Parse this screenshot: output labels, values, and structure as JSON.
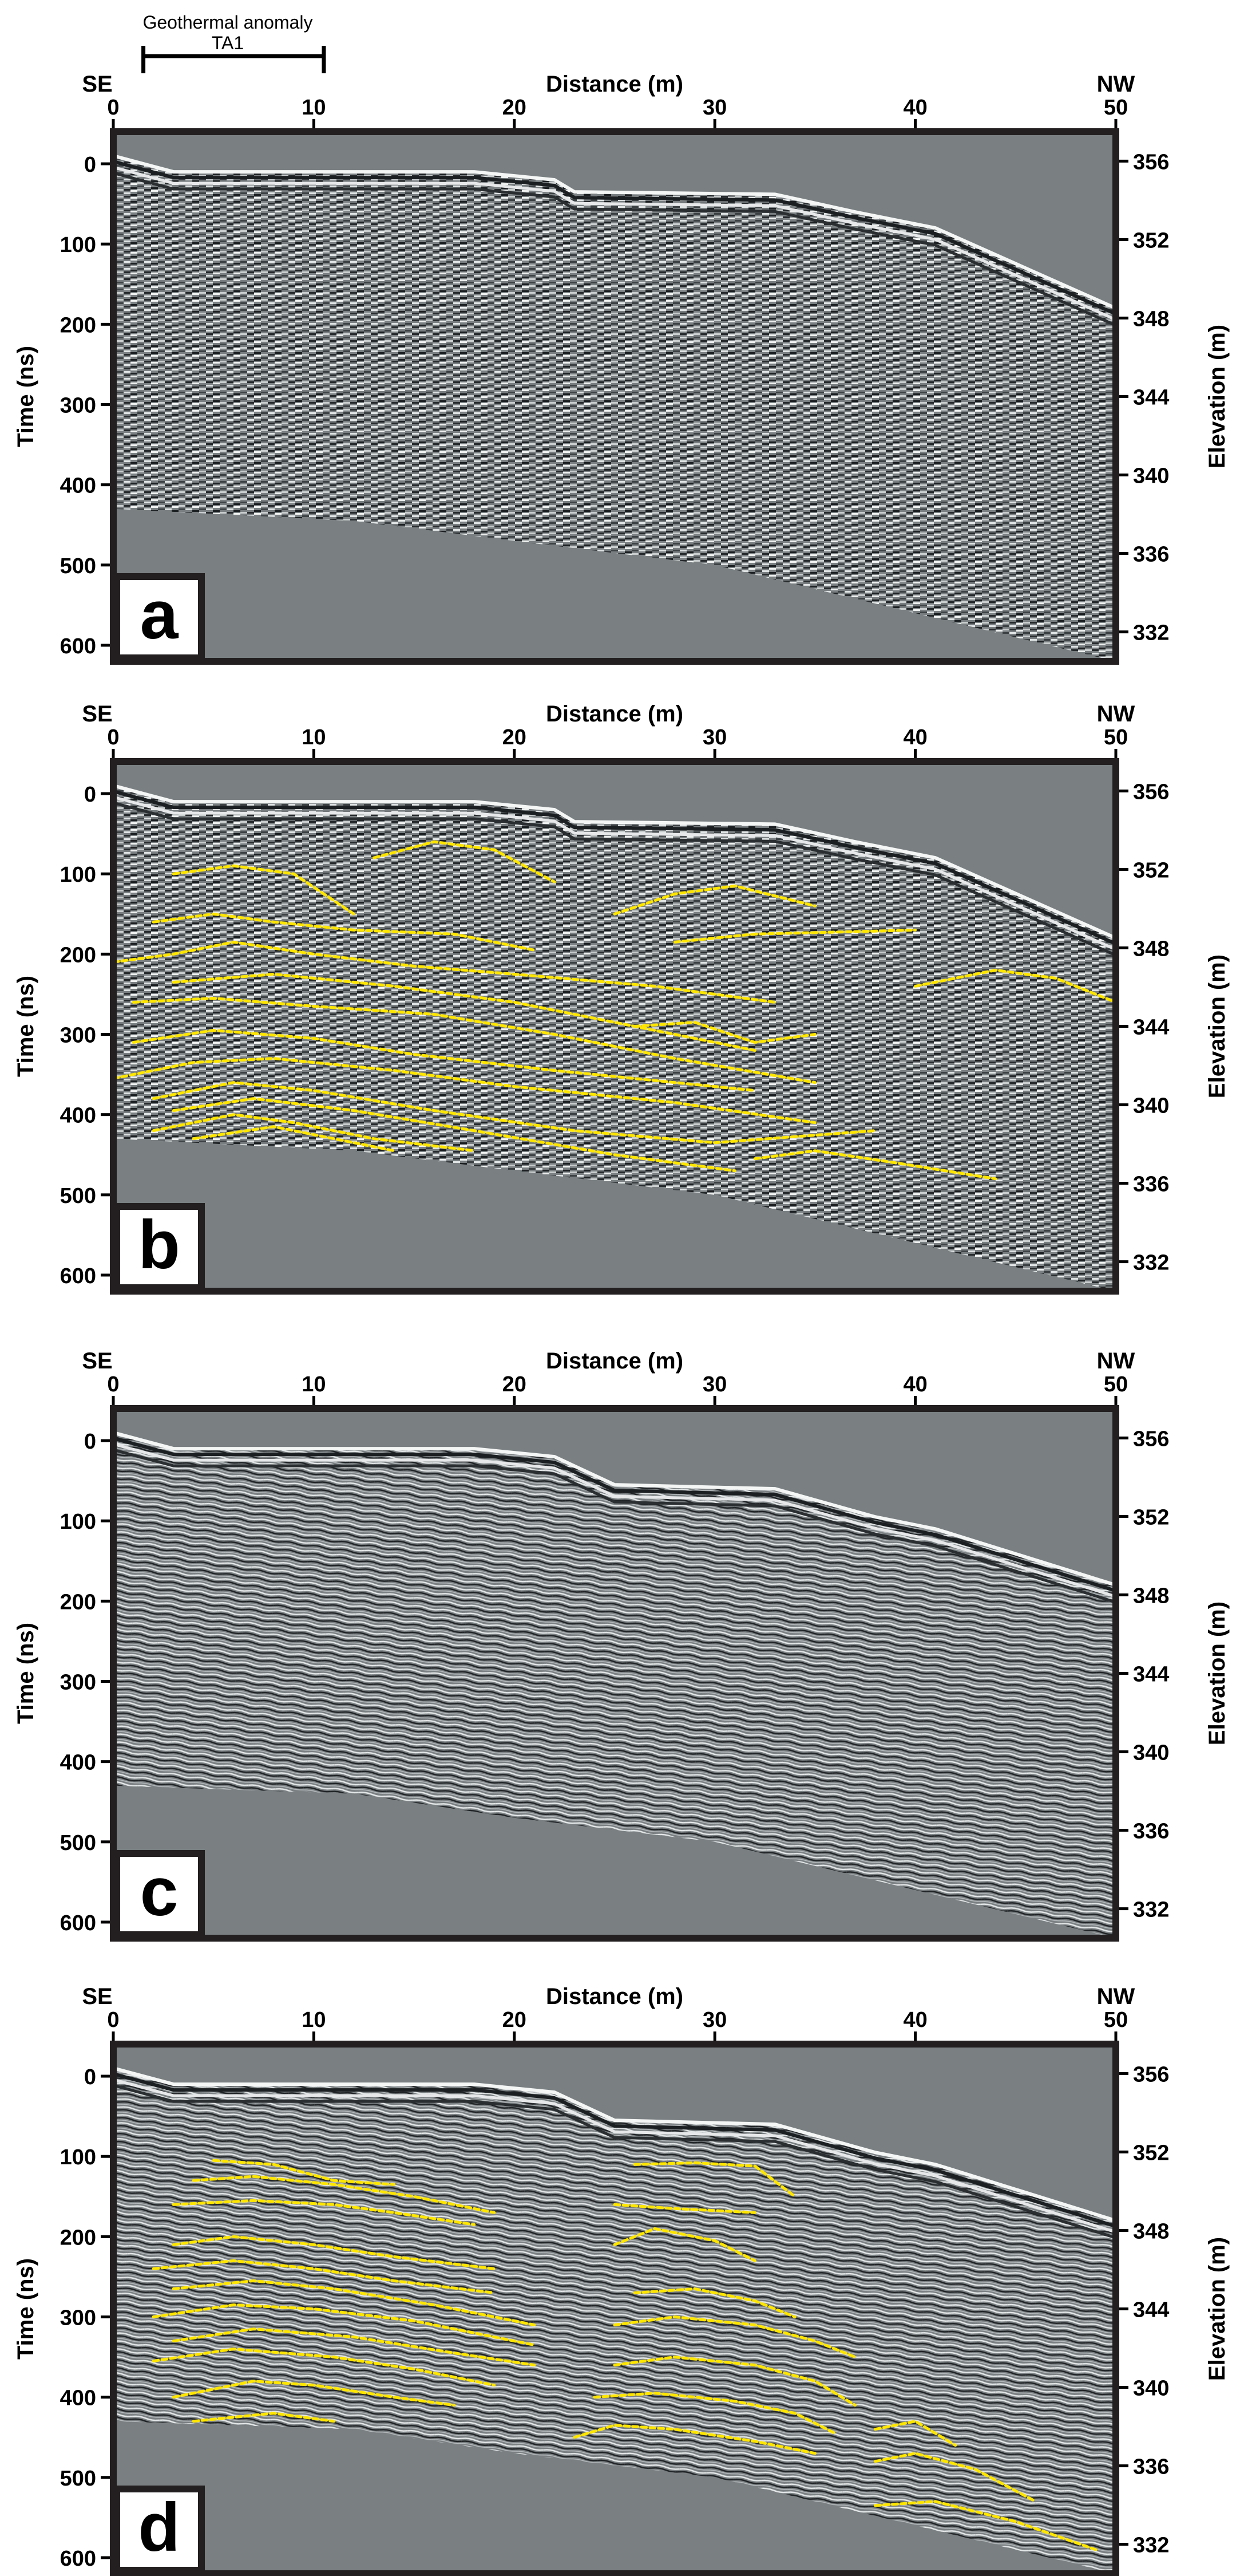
{
  "annotation": {
    "line1": "Geothermal anomaly",
    "line2": "TA1",
    "x_start": 1.5,
    "x_end": 10.5
  },
  "colors": {
    "background": "#ffffff",
    "plot_background": "#7a8082",
    "frame": "#231f20",
    "interpretation_line": "#ffe600"
  },
  "chart_data": [
    {
      "type": "heatmap",
      "panel_label": "a",
      "xlabel": "Distance (m)",
      "ylabel": "Time (ns)",
      "y2label": "Elevation (m)",
      "x_left_label": "SE",
      "x_right_label": "NW",
      "xlim": [
        0,
        50
      ],
      "ylim": [
        -40,
        620
      ],
      "y2lim": [
        357.5,
        330.5
      ],
      "xticks": [
        0,
        10,
        20,
        30,
        40,
        50
      ],
      "yticks": [
        0,
        100,
        200,
        300,
        400,
        500,
        600
      ],
      "y2ticks": [
        356,
        352,
        348,
        344,
        340,
        336,
        332
      ],
      "surface": [
        [
          0,
          -10
        ],
        [
          3,
          10
        ],
        [
          18,
          10
        ],
        [
          22,
          20
        ],
        [
          23,
          35
        ],
        [
          33,
          38
        ],
        [
          37,
          60
        ],
        [
          41,
          80
        ],
        [
          50,
          180
        ]
      ],
      "signal_bottom": [
        [
          0,
          430
        ],
        [
          12,
          445
        ],
        [
          20,
          470
        ],
        [
          30,
          500
        ],
        [
          40,
          560
        ],
        [
          50,
          620
        ]
      ],
      "processed": false,
      "interpreted_reflectors": []
    },
    {
      "type": "heatmap",
      "panel_label": "b",
      "xlabel": "Distance (m)",
      "ylabel": "Time (ns)",
      "y2label": "Elevation (m)",
      "x_left_label": "SE",
      "x_right_label": "NW",
      "xlim": [
        0,
        50
      ],
      "ylim": [
        -40,
        620
      ],
      "y2lim": [
        357.5,
        330.5
      ],
      "xticks": [
        0,
        10,
        20,
        30,
        40,
        50
      ],
      "yticks": [
        0,
        100,
        200,
        300,
        400,
        500,
        600
      ],
      "y2ticks": [
        356,
        352,
        348,
        344,
        340,
        336,
        332
      ],
      "surface": [
        [
          0,
          -10
        ],
        [
          3,
          10
        ],
        [
          18,
          10
        ],
        [
          22,
          20
        ],
        [
          23,
          35
        ],
        [
          33,
          38
        ],
        [
          37,
          60
        ],
        [
          41,
          80
        ],
        [
          50,
          180
        ]
      ],
      "signal_bottom": [
        [
          0,
          430
        ],
        [
          12,
          445
        ],
        [
          20,
          470
        ],
        [
          30,
          500
        ],
        [
          40,
          560
        ],
        [
          50,
          620
        ]
      ],
      "processed": false,
      "interpreted_reflectors": [
        [
          [
            3,
            100
          ],
          [
            6,
            90
          ],
          [
            9,
            100
          ],
          [
            12,
            150
          ]
        ],
        [
          [
            13,
            80
          ],
          [
            16,
            60
          ],
          [
            19,
            70
          ],
          [
            22,
            110
          ]
        ],
        [
          [
            25,
            150
          ],
          [
            28,
            125
          ],
          [
            31,
            115
          ],
          [
            35,
            140
          ]
        ],
        [
          [
            2,
            160
          ],
          [
            5,
            150
          ],
          [
            8,
            160
          ],
          [
            12,
            170
          ],
          [
            17,
            175
          ],
          [
            21,
            195
          ]
        ],
        [
          [
            28,
            185
          ],
          [
            32,
            175
          ],
          [
            37,
            172
          ],
          [
            40,
            170
          ]
        ],
        [
          [
            40,
            240
          ],
          [
            44,
            220
          ],
          [
            47,
            230
          ],
          [
            50,
            260
          ]
        ],
        [
          [
            0,
            210
          ],
          [
            3,
            200
          ],
          [
            6,
            185
          ],
          [
            10,
            200
          ],
          [
            15,
            215
          ],
          [
            20,
            225
          ],
          [
            27,
            240
          ],
          [
            33,
            260
          ]
        ],
        [
          [
            3,
            235
          ],
          [
            8,
            225
          ],
          [
            14,
            240
          ],
          [
            20,
            260
          ],
          [
            26,
            290
          ],
          [
            32,
            320
          ]
        ],
        [
          [
            1,
            260
          ],
          [
            5,
            255
          ],
          [
            10,
            265
          ],
          [
            16,
            275
          ],
          [
            22,
            300
          ],
          [
            28,
            330
          ],
          [
            35,
            360
          ]
        ],
        [
          [
            26,
            290
          ],
          [
            29,
            285
          ],
          [
            32,
            310
          ],
          [
            35,
            300
          ]
        ],
        [
          [
            1,
            310
          ],
          [
            5,
            295
          ],
          [
            10,
            305
          ],
          [
            15,
            325
          ],
          [
            22,
            345
          ],
          [
            32,
            370
          ]
        ],
        [
          [
            0,
            355
          ],
          [
            4,
            335
          ],
          [
            8,
            330
          ],
          [
            14,
            345
          ],
          [
            20,
            365
          ],
          [
            28,
            385
          ],
          [
            35,
            410
          ]
        ],
        [
          [
            2,
            380
          ],
          [
            6,
            360
          ],
          [
            10,
            370
          ],
          [
            16,
            395
          ],
          [
            23,
            420
          ],
          [
            30,
            435
          ],
          [
            38,
            420
          ]
        ],
        [
          [
            3,
            395
          ],
          [
            7,
            380
          ],
          [
            12,
            395
          ],
          [
            18,
            420
          ],
          [
            25,
            450
          ],
          [
            31,
            470
          ]
        ],
        [
          [
            2,
            420
          ],
          [
            6,
            400
          ],
          [
            9,
            410
          ],
          [
            13,
            430
          ],
          [
            18,
            445
          ]
        ],
        [
          [
            4,
            430
          ],
          [
            8,
            415
          ],
          [
            11,
            430
          ],
          [
            14,
            445
          ]
        ],
        [
          [
            32,
            455
          ],
          [
            35,
            445
          ],
          [
            39,
            460
          ],
          [
            44,
            480
          ]
        ]
      ]
    },
    {
      "type": "heatmap",
      "panel_label": "c",
      "xlabel": "Distance (m)",
      "ylabel": "Time (ns)",
      "y2label": "Elevation (m)",
      "x_left_label": "SE",
      "x_right_label": "NW",
      "xlim": [
        0,
        50
      ],
      "ylim": [
        -40,
        620
      ],
      "y2lim": [
        357.5,
        330.5
      ],
      "xticks": [
        0,
        10,
        20,
        30,
        40,
        50
      ],
      "yticks": [
        0,
        100,
        200,
        300,
        400,
        500,
        600
      ],
      "y2ticks": [
        356,
        352,
        348,
        344,
        340,
        336,
        332
      ],
      "surface": [
        [
          0,
          -10
        ],
        [
          3,
          10
        ],
        [
          18,
          10
        ],
        [
          22,
          20
        ],
        [
          25,
          55
        ],
        [
          33,
          60
        ],
        [
          38,
          95
        ],
        [
          41,
          110
        ],
        [
          50,
          180
        ]
      ],
      "signal_bottom": [
        [
          0,
          430
        ],
        [
          12,
          440
        ],
        [
          20,
          470
        ],
        [
          30,
          500
        ],
        [
          40,
          560
        ],
        [
          50,
          620
        ]
      ],
      "processed": true,
      "interpreted_reflectors": []
    },
    {
      "type": "heatmap",
      "panel_label": "d",
      "xlabel": "Distance (m)",
      "ylabel": "Time (ns)",
      "y2label": "Elevation (m)",
      "x_left_label": "SE",
      "x_right_label": "NW",
      "xlim": [
        0,
        50
      ],
      "ylim": [
        -40,
        620
      ],
      "y2lim": [
        357.5,
        330.5
      ],
      "xticks": [
        0,
        10,
        20,
        30,
        40,
        50
      ],
      "yticks": [
        0,
        100,
        200,
        300,
        400,
        500,
        600
      ],
      "y2ticks": [
        356,
        352,
        348,
        344,
        340,
        336,
        332
      ],
      "surface": [
        [
          0,
          -10
        ],
        [
          3,
          10
        ],
        [
          18,
          10
        ],
        [
          22,
          20
        ],
        [
          25,
          55
        ],
        [
          33,
          60
        ],
        [
          38,
          95
        ],
        [
          41,
          110
        ],
        [
          50,
          180
        ]
      ],
      "signal_bottom": [
        [
          0,
          430
        ],
        [
          12,
          440
        ],
        [
          20,
          470
        ],
        [
          30,
          500
        ],
        [
          40,
          560
        ],
        [
          50,
          620
        ]
      ],
      "processed": true,
      "interpreted_reflectors": [
        [
          [
            5,
            105
          ],
          [
            8,
            110
          ],
          [
            11,
            130
          ],
          [
            14,
            135
          ]
        ],
        [
          [
            26,
            110
          ],
          [
            29,
            108
          ],
          [
            32,
            112
          ],
          [
            34,
            150
          ]
        ],
        [
          [
            4,
            130
          ],
          [
            7,
            125
          ],
          [
            11,
            135
          ],
          [
            15,
            150
          ],
          [
            19,
            170
          ]
        ],
        [
          [
            3,
            160
          ],
          [
            7,
            155
          ],
          [
            11,
            160
          ],
          [
            14,
            170
          ],
          [
            18,
            185
          ]
        ],
        [
          [
            25,
            160
          ],
          [
            28,
            165
          ],
          [
            32,
            170
          ]
        ],
        [
          [
            25,
            210
          ],
          [
            27,
            190
          ],
          [
            30,
            205
          ],
          [
            32,
            230
          ]
        ],
        [
          [
            3,
            210
          ],
          [
            6,
            200
          ],
          [
            10,
            210
          ],
          [
            14,
            225
          ],
          [
            19,
            240
          ]
        ],
        [
          [
            2,
            240
          ],
          [
            6,
            230
          ],
          [
            10,
            240
          ],
          [
            14,
            255
          ],
          [
            19,
            270
          ]
        ],
        [
          [
            26,
            270
          ],
          [
            29,
            265
          ],
          [
            32,
            280
          ],
          [
            34,
            300
          ]
        ],
        [
          [
            3,
            265
          ],
          [
            7,
            255
          ],
          [
            11,
            265
          ],
          [
            16,
            285
          ],
          [
            21,
            310
          ]
        ],
        [
          [
            2,
            300
          ],
          [
            6,
            285
          ],
          [
            10,
            290
          ],
          [
            15,
            305
          ],
          [
            21,
            335
          ]
        ],
        [
          [
            25,
            310
          ],
          [
            28,
            300
          ],
          [
            32,
            310
          ],
          [
            35,
            330
          ],
          [
            37,
            350
          ]
        ],
        [
          [
            3,
            330
          ],
          [
            7,
            315
          ],
          [
            12,
            325
          ],
          [
            17,
            345
          ],
          [
            21,
            360
          ]
        ],
        [
          [
            2,
            355
          ],
          [
            6,
            340
          ],
          [
            11,
            350
          ],
          [
            15,
            365
          ],
          [
            19,
            385
          ]
        ],
        [
          [
            25,
            360
          ],
          [
            28,
            350
          ],
          [
            32,
            360
          ],
          [
            35,
            380
          ],
          [
            37,
            410
          ]
        ],
        [
          [
            3,
            400
          ],
          [
            7,
            380
          ],
          [
            10,
            385
          ],
          [
            14,
            400
          ],
          [
            17,
            410
          ]
        ],
        [
          [
            24,
            400
          ],
          [
            27,
            395
          ],
          [
            31,
            405
          ],
          [
            34,
            420
          ],
          [
            36,
            445
          ]
        ],
        [
          [
            4,
            430
          ],
          [
            8,
            420
          ],
          [
            11,
            430
          ]
        ],
        [
          [
            23,
            450
          ],
          [
            25,
            435
          ],
          [
            28,
            440
          ],
          [
            32,
            455
          ],
          [
            35,
            470
          ]
        ],
        [
          [
            38,
            440
          ],
          [
            40,
            430
          ],
          [
            42,
            460
          ]
        ],
        [
          [
            38,
            480
          ],
          [
            40,
            470
          ],
          [
            43,
            490
          ],
          [
            46,
            530
          ]
        ],
        [
          [
            38,
            535
          ],
          [
            41,
            530
          ],
          [
            45,
            555
          ],
          [
            49,
            590
          ]
        ]
      ]
    }
  ]
}
